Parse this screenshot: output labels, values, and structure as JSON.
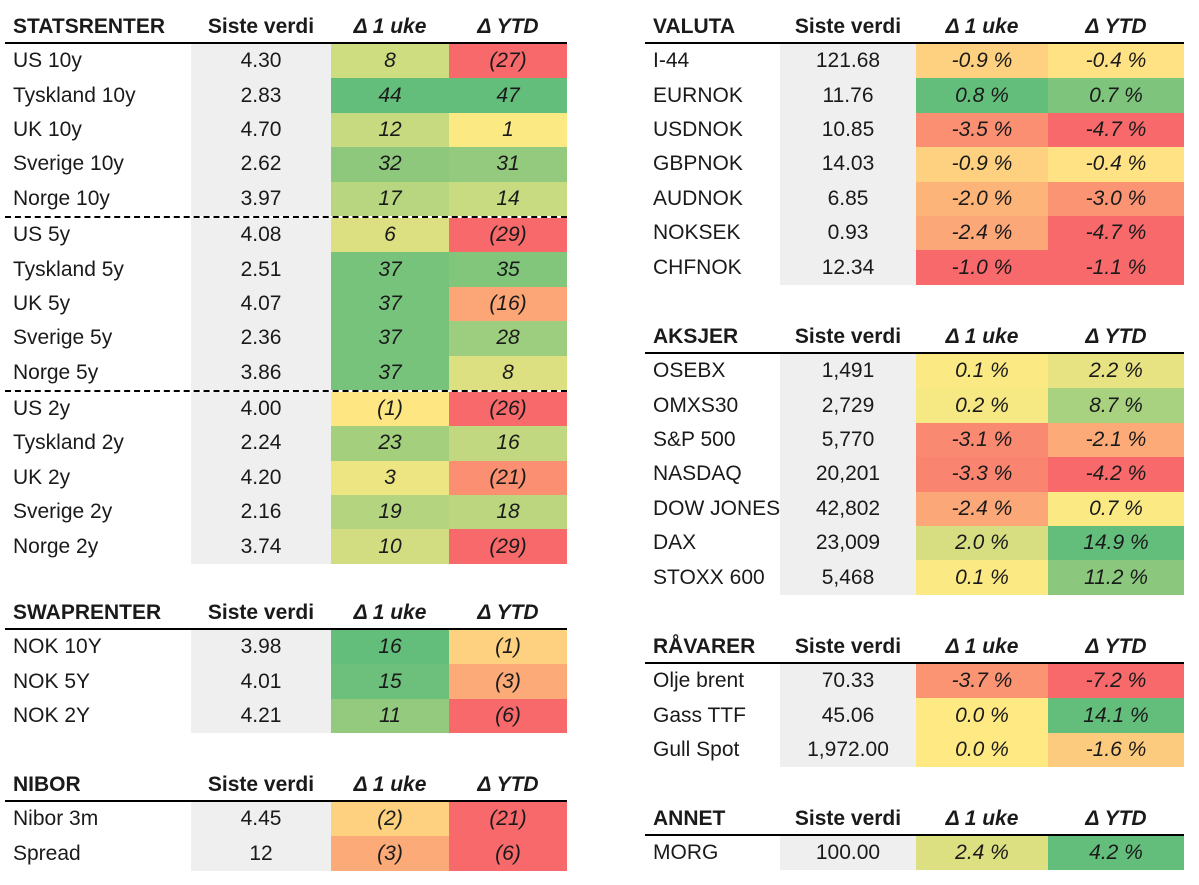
{
  "colors": {
    "green_dark": "#63be7b",
    "green": "#85c87d",
    "green_light": "#a8d27f",
    "yellow_green": "#cbdc81",
    "yellow": "#fbe983",
    "light_orange": "#fdd17f",
    "orange": "#fcaa78",
    "red_orange": "#f98a71",
    "red": "#f8696b",
    "value_bg": "#efefef"
  },
  "headers": {
    "col_value": "Siste verdi",
    "col_week": "Δ 1 uke",
    "col_ytd": "Δ YTD"
  },
  "statsrenter": {
    "title": "STATSRENTER",
    "rows": [
      {
        "name": "US 10y",
        "value": "4.30",
        "week": "8",
        "ytd": "(27)",
        "wc": "#cfdd81",
        "yc": "#f8696b"
      },
      {
        "name": "Tyskland 10y",
        "value": "2.83",
        "week": "44",
        "ytd": "47",
        "wc": "#63be7b",
        "yc": "#63be7b"
      },
      {
        "name": "UK 10y",
        "value": "4.70",
        "week": "12",
        "ytd": "1",
        "wc": "#c8da80",
        "yc": "#fbe983"
      },
      {
        "name": "Sverige 10y",
        "value": "2.62",
        "week": "32",
        "ytd": "31",
        "wc": "#8ec87d",
        "yc": "#94ca7e"
      },
      {
        "name": "Norge 10y",
        "value": "3.97",
        "week": "17",
        "ytd": "14",
        "wc": "#b8d580",
        "yc": "#c9db81",
        "sep": false
      },
      {
        "name": "US 5y",
        "value": "4.08",
        "week": "6",
        "ytd": "(29)",
        "wc": "#dde081",
        "yc": "#f8696b",
        "sep": true
      },
      {
        "name": "Tyskland 5y",
        "value": "2.51",
        "week": "37",
        "ytd": "35",
        "wc": "#78c37c",
        "yc": "#82c67c"
      },
      {
        "name": "UK 5y",
        "value": "4.07",
        "week": "37",
        "ytd": "(16)",
        "wc": "#78c37c",
        "yc": "#fca677"
      },
      {
        "name": "Sverige 5y",
        "value": "2.36",
        "week": "37",
        "ytd": "28",
        "wc": "#78c37c",
        "yc": "#9dcd7e"
      },
      {
        "name": "Norge 5y",
        "value": "3.86",
        "week": "37",
        "ytd": "8",
        "wc": "#78c37c",
        "yc": "#dde081"
      },
      {
        "name": "US 2y",
        "value": "4.00",
        "week": "(1)",
        "ytd": "(26)",
        "wc": "#fee683",
        "yc": "#f8696b",
        "sep": true
      },
      {
        "name": "Tyskland 2y",
        "value": "2.24",
        "week": "23",
        "ytd": "16",
        "wc": "#a4d07e",
        "yc": "#c2d880"
      },
      {
        "name": "UK 2y",
        "value": "4.20",
        "week": "3",
        "ytd": "(21)",
        "wc": "#ece582",
        "yc": "#fa8f72"
      },
      {
        "name": "Sverige 2y",
        "value": "2.16",
        "week": "19",
        "ytd": "18",
        "wc": "#b5d480",
        "yc": "#bbd67f"
      },
      {
        "name": "Norge 2y",
        "value": "3.74",
        "week": "10",
        "ytd": "(29)",
        "wc": "#d2dd81",
        "yc": "#f8696b"
      }
    ]
  },
  "swaprenter": {
    "title": "SWAPRENTER",
    "rows": [
      {
        "name": "NOK 10Y",
        "value": "3.98",
        "week": "16",
        "ytd": "(1)",
        "wc": "#63be7b",
        "yc": "#fdd17f"
      },
      {
        "name": "NOK 5Y",
        "value": "4.01",
        "week": "15",
        "ytd": "(3)",
        "wc": "#6cc07b",
        "yc": "#fcaa78"
      },
      {
        "name": "NOK 2Y",
        "value": "4.21",
        "week": "11",
        "ytd": "(6)",
        "wc": "#94ca7e",
        "yc": "#f8696b"
      }
    ]
  },
  "nibor": {
    "title": "NIBOR",
    "rows": [
      {
        "name": "Nibor 3m",
        "value": "4.45",
        "week": "(2)",
        "ytd": "(21)",
        "wc": "#fdd17f",
        "yc": "#f8696b"
      },
      {
        "name": "Spread",
        "value": "12",
        "week": "(3)",
        "ytd": "(6)",
        "wc": "#fcaa78",
        "yc": "#f8696b"
      }
    ]
  },
  "valuta": {
    "title": "VALUTA",
    "rows": [
      {
        "name": "I-44",
        "value": "121.68",
        "week": "-0.9 %",
        "ytd": "-0.4 %",
        "wc": "#fdd17f",
        "yc": "#fee283"
      },
      {
        "name": "EURNOK",
        "value": "11.76",
        "week": "0.8 %",
        "ytd": "0.7 %",
        "wc": "#63be7b",
        "yc": "#7ec47c"
      },
      {
        "name": "USDNOK",
        "value": "10.85",
        "week": "-3.5 %",
        "ytd": "-4.7 %",
        "wc": "#fa8f72",
        "yc": "#f8696b"
      },
      {
        "name": "GBPNOK",
        "value": "14.03",
        "week": "-0.9 %",
        "ytd": "-0.4 %",
        "wc": "#fdd17f",
        "yc": "#fee283"
      },
      {
        "name": "AUDNOK",
        "value": "6.85",
        "week": "-2.0 %",
        "ytd": "-3.0 %",
        "wc": "#fcb479",
        "yc": "#fa9473"
      },
      {
        "name": "NOKSEK",
        "value": "0.93",
        "week": "-2.4 %",
        "ytd": "-4.7 %",
        "wc": "#fba777",
        "yc": "#f8696b"
      },
      {
        "name": "CHFNOK",
        "value": "12.34",
        "week": "-1.0 %",
        "ytd": "-1.1 %",
        "wc": "#f8696b",
        "yc": "#f8696b"
      }
    ]
  },
  "aksjer": {
    "title": "AKSJER",
    "rows": [
      {
        "name": "OSEBX",
        "value": "1,491",
        "week": "0.1 %",
        "ytd": "2.2 %",
        "wc": "#fbe983",
        "yc": "#e8e382"
      },
      {
        "name": "OMXS30",
        "value": "2,729",
        "week": "0.2 %",
        "ytd": "8.7 %",
        "wc": "#f6e883",
        "yc": "#a8d27f"
      },
      {
        "name": "S&P 500",
        "value": "5,770",
        "week": "-3.1 %",
        "ytd": "-2.1 %",
        "wc": "#f98a71",
        "yc": "#fcaa78"
      },
      {
        "name": "NASDAQ",
        "value": "20,201",
        "week": "-3.3 %",
        "ytd": "-4.2 %",
        "wc": "#f98570",
        "yc": "#f8696b"
      },
      {
        "name": "DOW JONES",
        "value": "42,802",
        "week": "-2.4 %",
        "ytd": "0.7 %",
        "wc": "#fba777",
        "yc": "#fbe983"
      },
      {
        "name": "DAX",
        "value": "23,009",
        "week": "2.0 %",
        "ytd": "14.9 %",
        "wc": "#d7de81",
        "yc": "#63be7b"
      },
      {
        "name": "STOXX 600",
        "value": "5,468",
        "week": "0.1 %",
        "ytd": "11.2 %",
        "wc": "#fbe983",
        "yc": "#8bc77d"
      }
    ]
  },
  "ravarer": {
    "title": "RÅVARER",
    "rows": [
      {
        "name": "Olje brent",
        "value": "70.33",
        "week": "-3.7 %",
        "ytd": "-7.2 %",
        "wc": "#fa9473",
        "yc": "#f8696b"
      },
      {
        "name": "Gass TTF",
        "value": "45.06",
        "week": "0.0 %",
        "ytd": "14.1 %",
        "wc": "#fee983",
        "yc": "#63be7b"
      },
      {
        "name": "Gull Spot",
        "value": "1,972.00",
        "week": "0.0 %",
        "ytd": "-1.6 %",
        "wc": "#fee983",
        "yc": "#fdcb7e"
      }
    ]
  },
  "annet": {
    "title": "ANNET",
    "rows": [
      {
        "name": "MORG",
        "value": "100.00",
        "week": "2.4 %",
        "ytd": "4.2 %",
        "wc": "#dde081",
        "yc": "#63be7b"
      }
    ]
  }
}
